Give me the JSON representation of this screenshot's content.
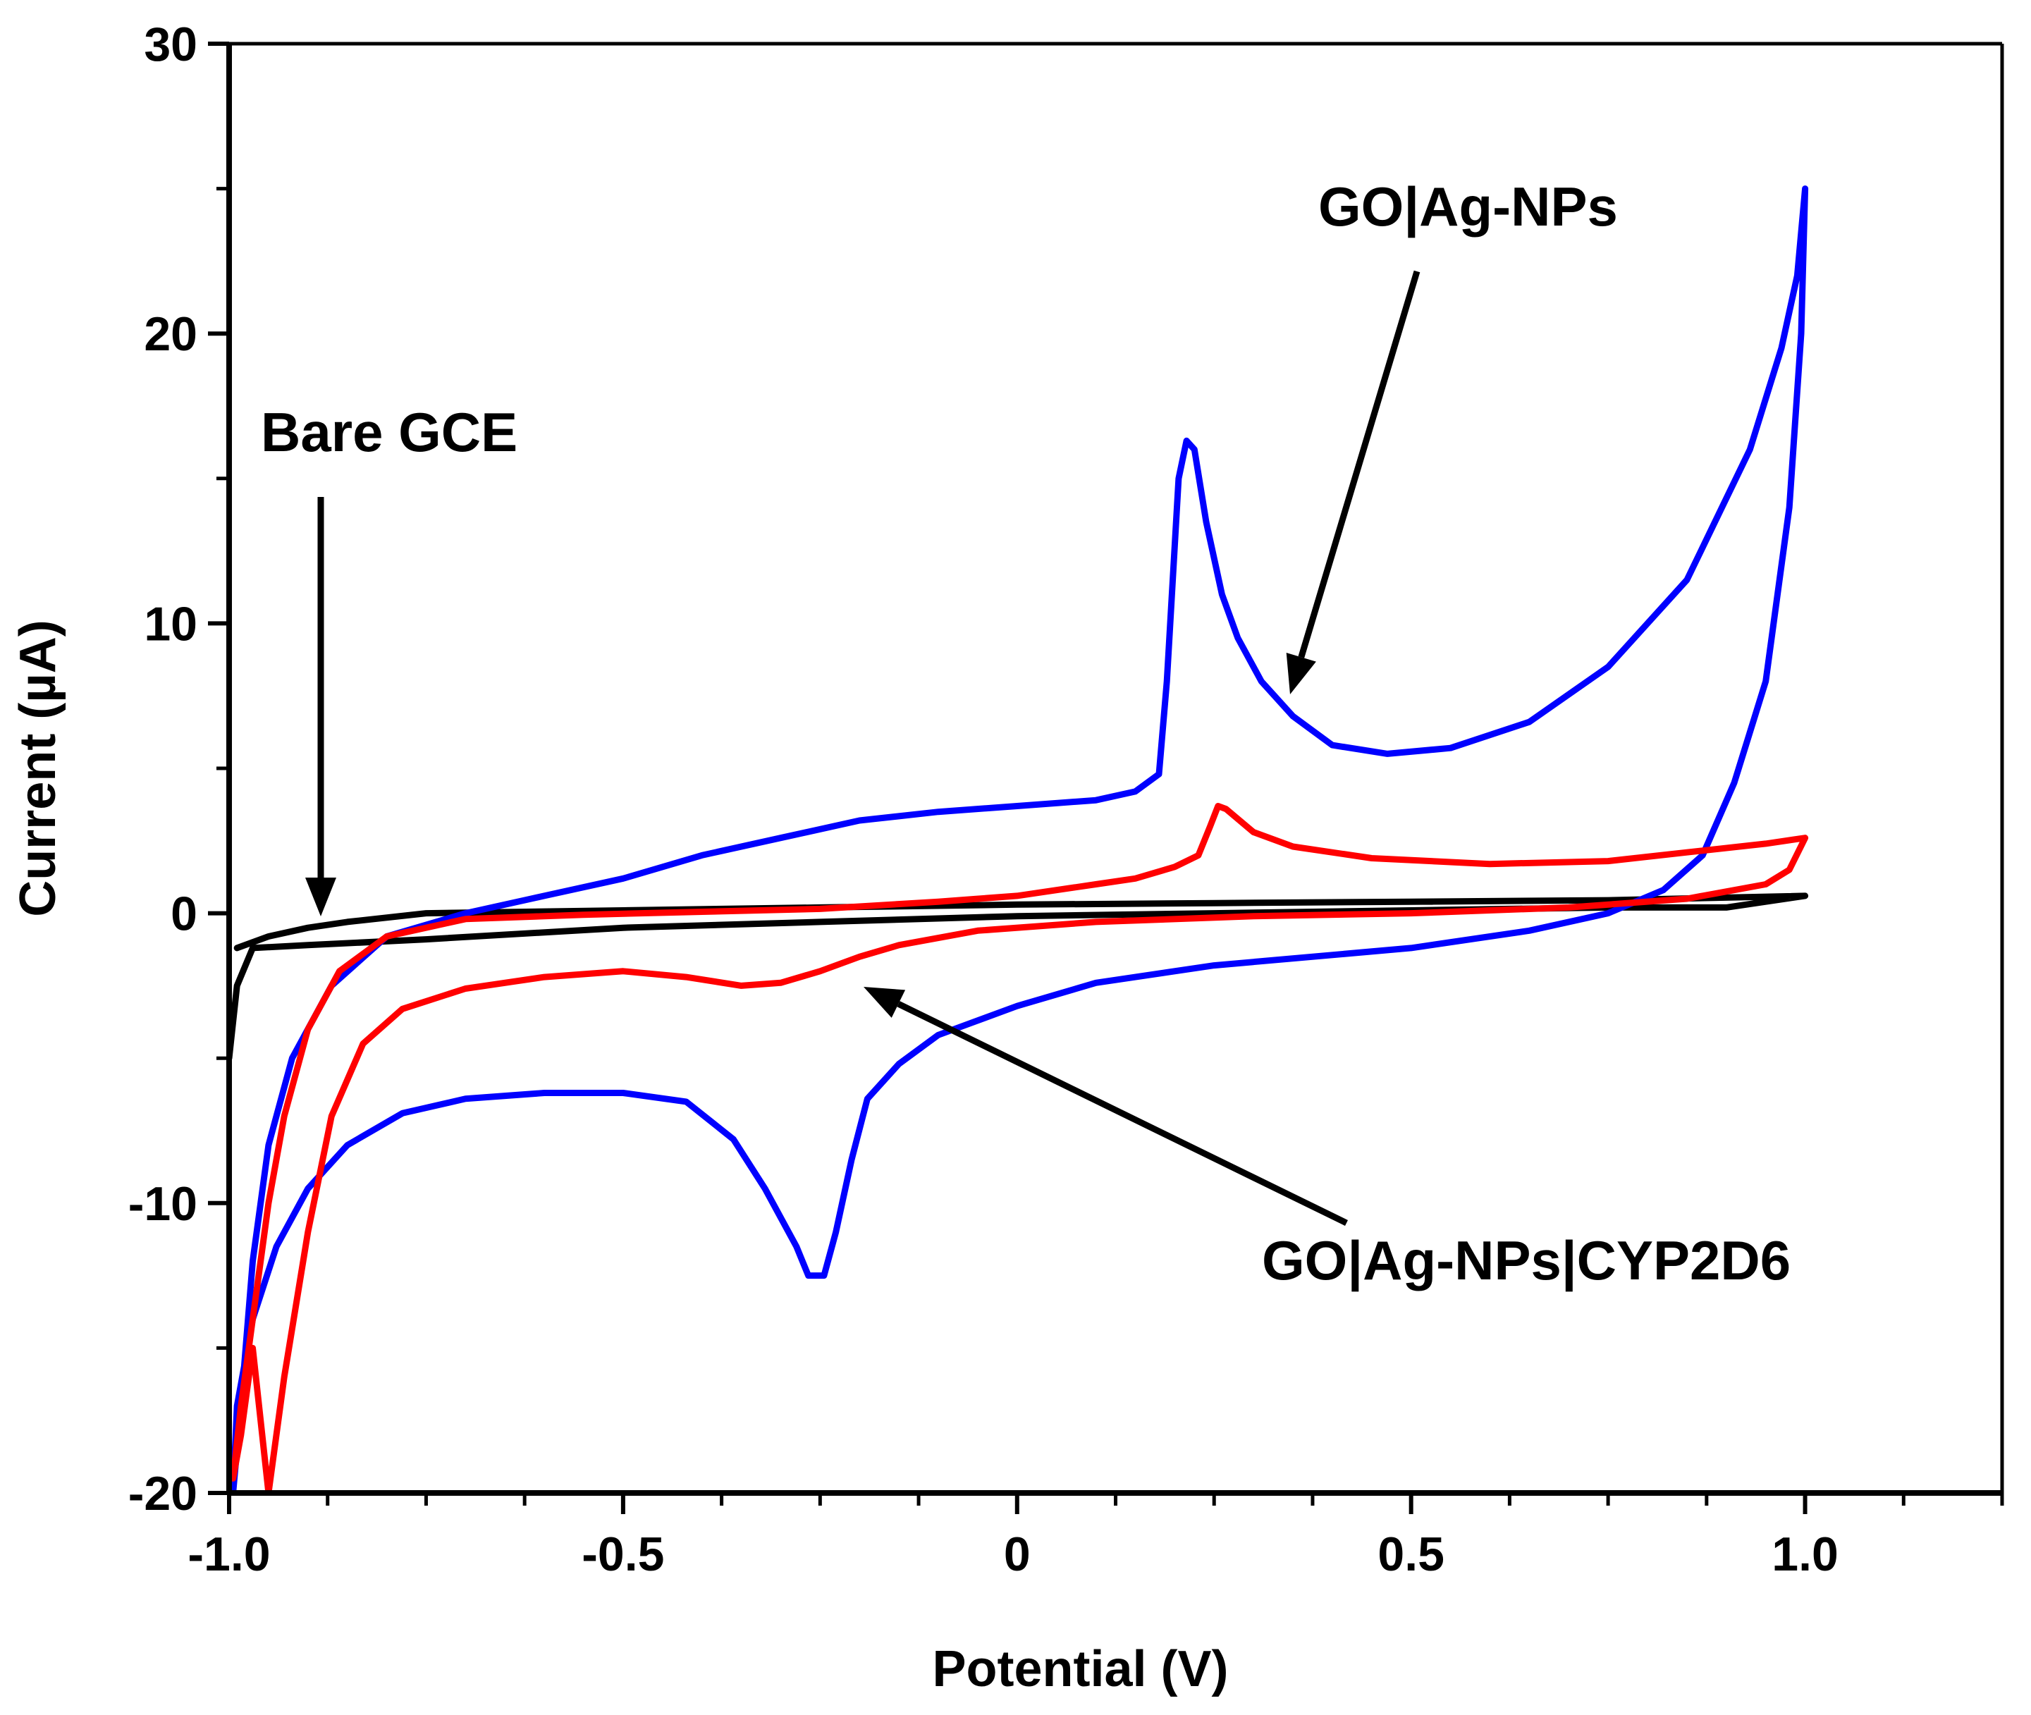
{
  "chart_data": {
    "type": "line",
    "title": "",
    "xlabel": "Potential (V)",
    "ylabel": "Current (µA)",
    "xlim": [
      -1.0,
      1.25
    ],
    "ylim": [
      -20,
      30
    ],
    "x_ticks": [
      {
        "value": -1.0,
        "label": "-1.0"
      },
      {
        "value": -0.5,
        "label": "-0.5"
      },
      {
        "value": 0.0,
        "label": "0"
      },
      {
        "value": 0.5,
        "label": "0.5"
      },
      {
        "value": 1.0,
        "label": "1.0"
      }
    ],
    "y_ticks": [
      {
        "value": -20,
        "label": "-20"
      },
      {
        "value": -10,
        "label": "-10"
      },
      {
        "value": 0,
        "label": "0"
      },
      {
        "value": 10,
        "label": "10"
      },
      {
        "value": 20,
        "label": "20"
      },
      {
        "value": 30,
        "label": "30"
      }
    ],
    "grid": false,
    "legend": "none",
    "series": [
      {
        "name": "Bare GCE",
        "color": "#000000",
        "points": [
          [
            -0.99,
            -1.2
          ],
          [
            -0.95,
            -0.8
          ],
          [
            -0.9,
            -0.5
          ],
          [
            -0.85,
            -0.3
          ],
          [
            -0.75,
            0.0
          ],
          [
            -0.5,
            0.1
          ],
          [
            -0.25,
            0.2
          ],
          [
            0.0,
            0.3
          ],
          [
            0.25,
            0.35
          ],
          [
            0.5,
            0.4
          ],
          [
            0.75,
            0.45
          ],
          [
            1.0,
            0.6
          ],
          [
            0.9,
            0.2
          ],
          [
            0.75,
            0.2
          ],
          [
            0.5,
            0.1
          ],
          [
            0.25,
            0.0
          ],
          [
            0.0,
            -0.1
          ],
          [
            -0.25,
            -0.3
          ],
          [
            -0.5,
            -0.5
          ],
          [
            -0.75,
            -0.9
          ],
          [
            -0.9,
            -1.1
          ],
          [
            -0.97,
            -1.2
          ],
          [
            -0.99,
            -2.5
          ],
          [
            -1.0,
            -5.0
          ]
        ]
      },
      {
        "name": "GO|Ag-NPs",
        "color": "#0000ff",
        "points": [
          [
            1.0,
            25.0
          ],
          [
            0.99,
            22.0
          ],
          [
            0.97,
            19.5
          ],
          [
            0.93,
            16.0
          ],
          [
            0.85,
            11.5
          ],
          [
            0.75,
            8.5
          ],
          [
            0.65,
            6.6
          ],
          [
            0.55,
            5.7
          ],
          [
            0.47,
            5.5
          ],
          [
            0.4,
            5.8
          ],
          [
            0.35,
            6.8
          ],
          [
            0.31,
            8.0
          ],
          [
            0.28,
            9.5
          ],
          [
            0.26,
            11.0
          ],
          [
            0.24,
            13.5
          ],
          [
            0.225,
            16.0
          ],
          [
            0.215,
            16.3
          ],
          [
            0.205,
            15.0
          ],
          [
            0.19,
            8.0
          ],
          [
            0.18,
            4.8
          ],
          [
            0.15,
            4.2
          ],
          [
            0.1,
            3.9
          ],
          [
            0.0,
            3.7
          ],
          [
            -0.1,
            3.5
          ],
          [
            -0.2,
            3.2
          ],
          [
            -0.3,
            2.6
          ],
          [
            -0.4,
            2.0
          ],
          [
            -0.5,
            1.2
          ],
          [
            -0.6,
            0.6
          ],
          [
            -0.7,
            0.0
          ],
          [
            -0.8,
            -0.8
          ],
          [
            -0.87,
            -2.5
          ],
          [
            -0.92,
            -5.0
          ],
          [
            -0.95,
            -8.0
          ],
          [
            -0.97,
            -12.0
          ],
          [
            -0.985,
            -17.0
          ],
          [
            -0.995,
            -20.0
          ],
          [
            -0.99,
            -17.0
          ],
          [
            -0.97,
            -14.0
          ],
          [
            -0.94,
            -11.5
          ],
          [
            -0.9,
            -9.5
          ],
          [
            -0.85,
            -8.0
          ],
          [
            -0.78,
            -6.9
          ],
          [
            -0.7,
            -6.4
          ],
          [
            -0.6,
            -6.2
          ],
          [
            -0.5,
            -6.2
          ],
          [
            -0.42,
            -6.5
          ],
          [
            -0.36,
            -7.8
          ],
          [
            -0.32,
            -9.5
          ],
          [
            -0.28,
            -11.5
          ],
          [
            -0.265,
            -12.5
          ],
          [
            -0.245,
            -12.5
          ],
          [
            -0.23,
            -11.0
          ],
          [
            -0.21,
            -8.5
          ],
          [
            -0.19,
            -6.4
          ],
          [
            -0.15,
            -5.2
          ],
          [
            -0.1,
            -4.2
          ],
          [
            0.0,
            -3.2
          ],
          [
            0.1,
            -2.4
          ],
          [
            0.25,
            -1.8
          ],
          [
            0.5,
            -1.2
          ],
          [
            0.65,
            -0.6
          ],
          [
            0.75,
            0.0
          ],
          [
            0.82,
            0.8
          ],
          [
            0.87,
            2.0
          ],
          [
            0.91,
            4.5
          ],
          [
            0.95,
            8.0
          ],
          [
            0.98,
            14.0
          ],
          [
            0.995,
            20.0
          ],
          [
            1.0,
            25.0
          ]
        ]
      },
      {
        "name": "GO|Ag-NPs|CYP2D6",
        "color": "#ff0000",
        "points": [
          [
            1.0,
            2.6
          ],
          [
            0.95,
            2.4
          ],
          [
            0.85,
            2.1
          ],
          [
            0.75,
            1.8
          ],
          [
            0.6,
            1.7
          ],
          [
            0.45,
            1.9
          ],
          [
            0.35,
            2.3
          ],
          [
            0.3,
            2.8
          ],
          [
            0.265,
            3.6
          ],
          [
            0.255,
            3.7
          ],
          [
            0.245,
            3.0
          ],
          [
            0.23,
            2.0
          ],
          [
            0.2,
            1.6
          ],
          [
            0.15,
            1.2
          ],
          [
            0.1,
            1.0
          ],
          [
            0.0,
            0.6
          ],
          [
            -0.1,
            0.4
          ],
          [
            -0.25,
            0.15
          ],
          [
            -0.4,
            0.05
          ],
          [
            -0.55,
            -0.05
          ],
          [
            -0.7,
            -0.2
          ],
          [
            -0.8,
            -0.8
          ],
          [
            -0.86,
            -2.0
          ],
          [
            -0.9,
            -4.0
          ],
          [
            -0.93,
            -7.0
          ],
          [
            -0.95,
            -10.0
          ],
          [
            -0.97,
            -14.0
          ],
          [
            -0.985,
            -17.0
          ],
          [
            -0.995,
            -19.5
          ],
          [
            -0.985,
            -18.0
          ],
          [
            -0.97,
            -15.0
          ],
          [
            -0.95,
            -20.0
          ],
          [
            -0.93,
            -16.0
          ],
          [
            -0.9,
            -11.0
          ],
          [
            -0.87,
            -7.0
          ],
          [
            -0.83,
            -4.5
          ],
          [
            -0.78,
            -3.3
          ],
          [
            -0.7,
            -2.6
          ],
          [
            -0.6,
            -2.2
          ],
          [
            -0.5,
            -2.0
          ],
          [
            -0.42,
            -2.2
          ],
          [
            -0.35,
            -2.5
          ],
          [
            -0.3,
            -2.4
          ],
          [
            -0.25,
            -2.0
          ],
          [
            -0.2,
            -1.5
          ],
          [
            -0.15,
            -1.1
          ],
          [
            -0.05,
            -0.6
          ],
          [
            0.1,
            -0.3
          ],
          [
            0.3,
            -0.1
          ],
          [
            0.5,
            0.0
          ],
          [
            0.7,
            0.2
          ],
          [
            0.85,
            0.5
          ],
          [
            0.95,
            1.0
          ],
          [
            0.98,
            1.5
          ],
          [
            1.0,
            2.6
          ]
        ]
      }
    ],
    "annotations": [
      {
        "text": "Bare GCE",
        "target": [
          -0.88,
          -0.3
        ],
        "label_at": [
          -1.0,
          18.0
        ]
      },
      {
        "text": "GO|Ag-NPs",
        "target": [
          0.33,
          7.5
        ],
        "label_at": [
          0.38,
          24.0
        ]
      },
      {
        "text": "GO|Ag-NPs|CYP2D6",
        "target": [
          -0.21,
          -2.3
        ],
        "label_at": [
          0.3,
          -12.5
        ]
      }
    ]
  }
}
